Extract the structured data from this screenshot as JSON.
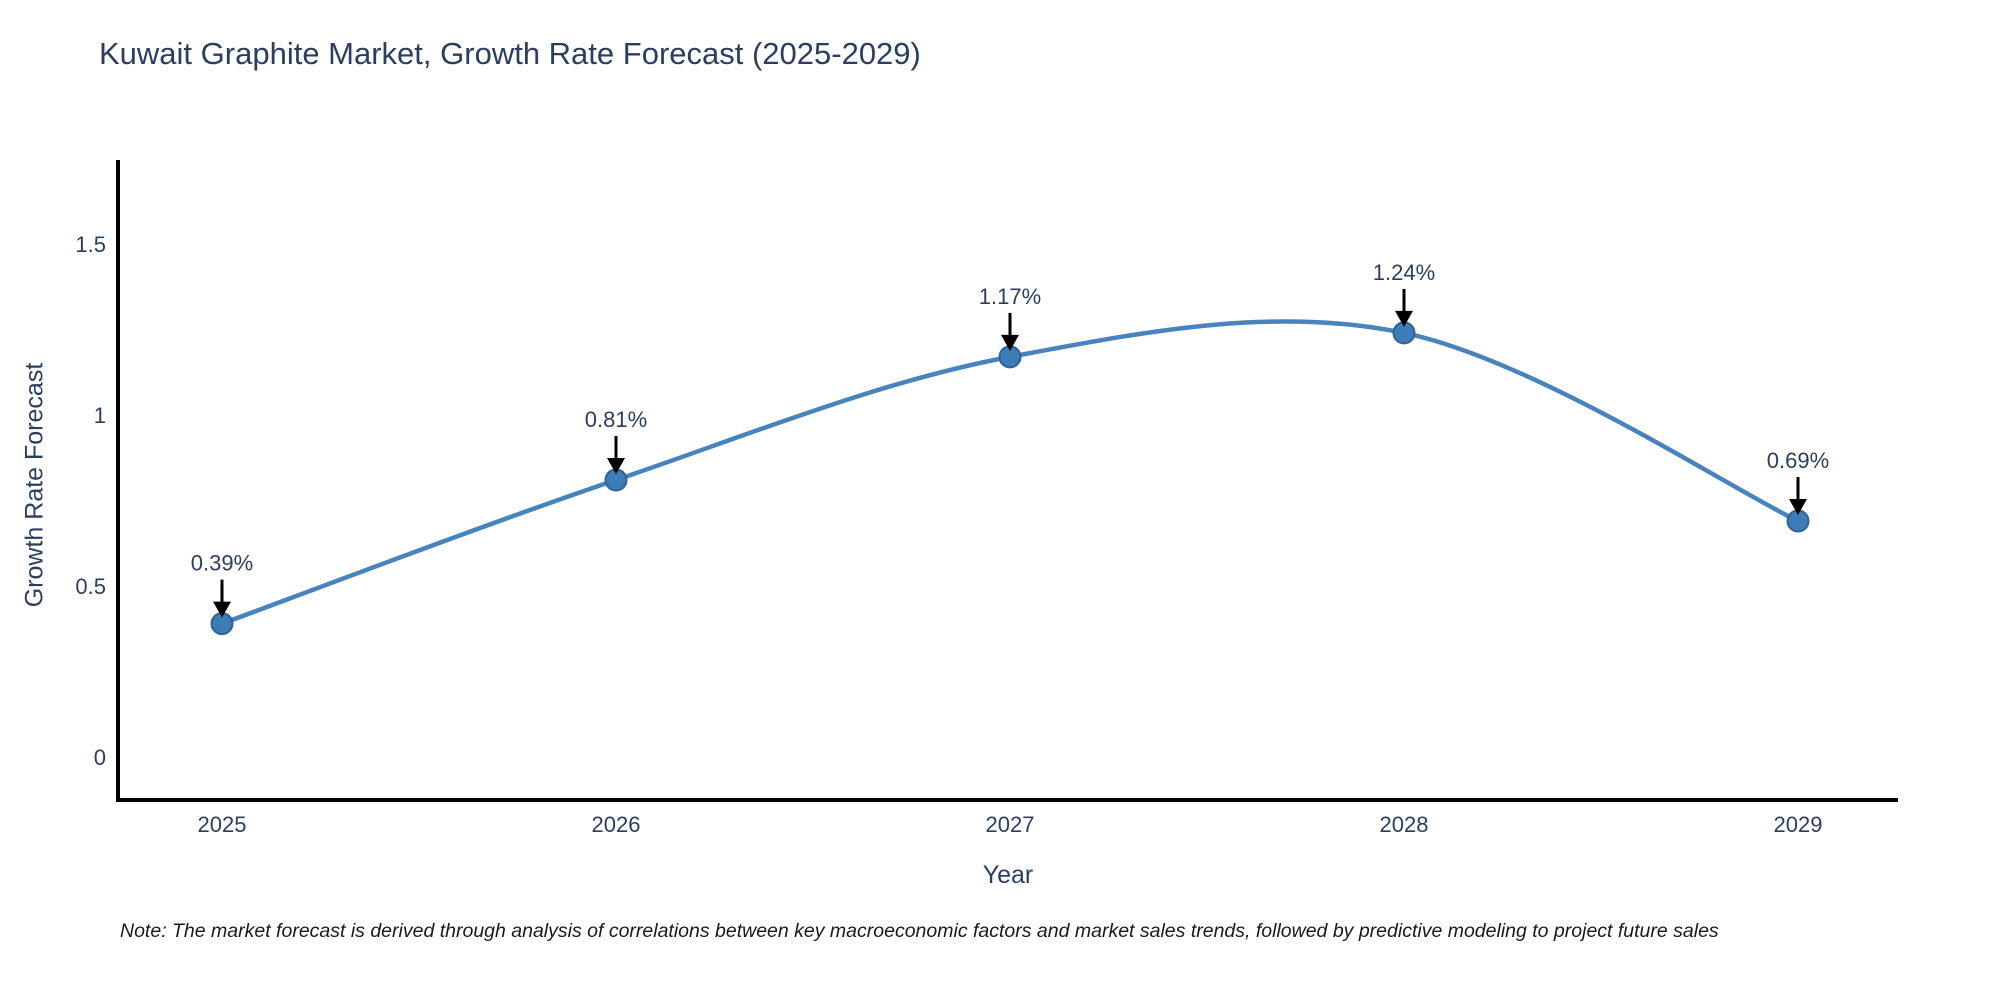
{
  "title": "Kuwait Graphite Market, Growth Rate Forecast (2025-2029)",
  "note": "Note: The market forecast is derived through analysis of correlations between key macroeconomic factors and market sales trends, followed by predictive modeling to project future sales",
  "chart_data": {
    "type": "line",
    "title": "Kuwait Graphite Market, Growth Rate Forecast (2025-2029)",
    "xlabel": "Year",
    "ylabel": "Growth Rate Forecast",
    "categories": [
      "2025",
      "2026",
      "2027",
      "2028",
      "2029"
    ],
    "series": [
      {
        "name": "Growth Rate Forecast",
        "values": [
          0.39,
          0.81,
          1.17,
          1.24,
          0.69
        ],
        "point_labels": [
          "0.39%",
          "0.81%",
          "1.17%",
          "1.24%",
          "0.69%"
        ]
      }
    ],
    "yticks": [
      0,
      0.5,
      1,
      1.5
    ],
    "ylim": [
      -0.13,
      1.75
    ],
    "line_shape": "spline",
    "grid": false,
    "legend": "none",
    "annotations_style": "black-arrow-pointing-down-to-point",
    "colors": {
      "line": "#4783bd",
      "marker_fill": "#3e7cb8",
      "marker_edge": "#2f6295",
      "axis": "#000000",
      "text": "#2a3f5f",
      "arrow": "#000000",
      "note_text": "#1a1a1a",
      "background": "#ffffff"
    }
  }
}
